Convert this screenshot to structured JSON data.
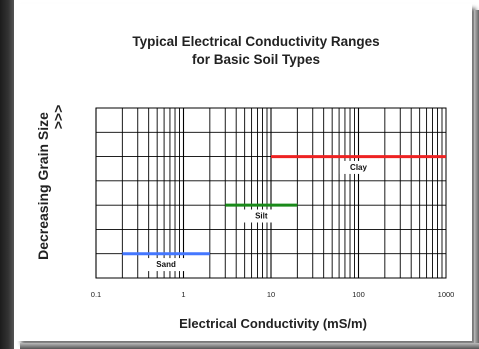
{
  "chart_data": {
    "type": "line",
    "title_lines": [
      "Typical Electrical Conductivity Ranges",
      "for Basic Soil Types"
    ],
    "xlabel": "Electrical Conductivity (mS/m)",
    "ylabel": "Decreasing Grain Size",
    "ylabel_arrow": ">>>",
    "x_scale": "log",
    "xlim": [
      0.1,
      1000
    ],
    "x_ticks": [
      "0.1",
      "1",
      "10",
      "100",
      "1000"
    ],
    "grid": true,
    "series": [
      {
        "name": "Sand",
        "x": [
          0.2,
          2
        ],
        "level": 1,
        "color": "#4477ff"
      },
      {
        "name": "Silt",
        "x": [
          3,
          20
        ],
        "level": 3,
        "color": "#1a8a1a"
      },
      {
        "name": "Clay",
        "x": [
          10,
          1000
        ],
        "level": 5,
        "color": "#ee2222"
      }
    ]
  }
}
